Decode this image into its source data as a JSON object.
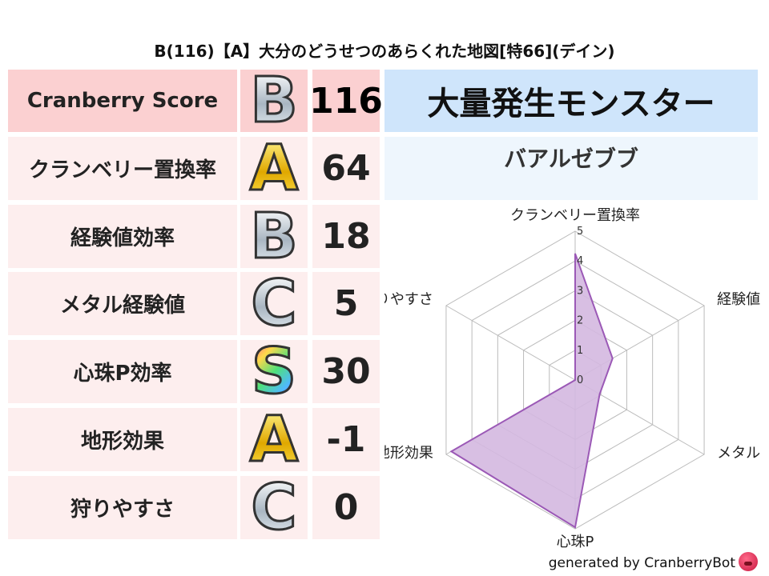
{
  "title": "B(116)【A】大分のどうせつのあらくれた地図[特66](デイン)",
  "rows": [
    {
      "label": "Cranberry Score",
      "grade": "B",
      "value": "116"
    },
    {
      "label": "クランベリー置換率",
      "grade": "A",
      "value": "64"
    },
    {
      "label": "経験値効率",
      "grade": "B",
      "value": "18"
    },
    {
      "label": "メタル経験値",
      "grade": "C",
      "value": "5"
    },
    {
      "label": "心珠P効率",
      "grade": "S",
      "value": "30"
    },
    {
      "label": "地形効果",
      "grade": "A",
      "value": "-1"
    },
    {
      "label": "狩りやすさ",
      "grade": "C",
      "value": "0"
    }
  ],
  "monster": {
    "header": "大量発生モンスター",
    "name": "バアルゼブブ"
  },
  "footer": "generated by CranberryBot",
  "colors": {
    "header_row": "#fbd0d1",
    "row": "#fdeeee",
    "monster_header": "#cfe5fb",
    "series_fill": "#d4b8e0",
    "series_line": "#9b59b6"
  },
  "chart_data": {
    "type": "radar",
    "axes": [
      "クランベリー置換率",
      "経験値",
      "メタル",
      "心珠P",
      "地形効果",
      "狩りやすさ"
    ],
    "values": [
      4.25,
      1.45,
      0.95,
      4.95,
      4.8,
      0
    ],
    "rlim": [
      0,
      5
    ],
    "ticks": [
      "0",
      "1",
      "2",
      "3",
      "4",
      "5"
    ],
    "grid": true
  }
}
